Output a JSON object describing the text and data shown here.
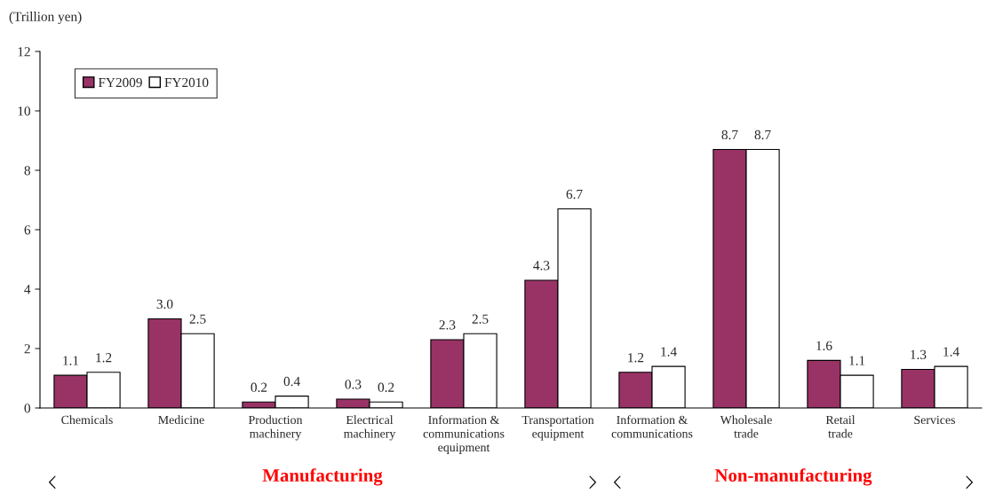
{
  "chart_data": {
    "type": "bar",
    "ylabel": "(Trillion yen)",
    "categories": [
      "Chemicals",
      "Medicine",
      "Production\nmachinery",
      "Electrical\nmachinery",
      "Information &\ncommunications\nequipment",
      "Transportation\nequipment",
      "Information &\ncommunications",
      "Wholesale\ntrade",
      "Retail\ntrade",
      "Services"
    ],
    "series": [
      {
        "name": "FY2009",
        "color": "#993366",
        "values": [
          1.1,
          3.0,
          0.2,
          0.3,
          2.3,
          4.3,
          1.2,
          8.7,
          1.6,
          1.3
        ],
        "value_labels": [
          "1.1",
          "3.0",
          "0.2",
          "0.3",
          "2.3",
          "4.3",
          "1.2",
          "8.7",
          "1.6",
          "1.3"
        ]
      },
      {
        "name": "FY2010",
        "color": "#ffffff",
        "values": [
          1.2,
          2.5,
          0.4,
          0.2,
          2.5,
          6.7,
          1.4,
          8.7,
          1.1,
          1.4
        ],
        "value_labels": [
          "1.2",
          "2.5",
          "0.4",
          "0.2",
          "2.5",
          "6.7",
          "1.4",
          "8.7",
          "1.1",
          "1.4"
        ]
      }
    ],
    "ylim": [
      0,
      12
    ],
    "yticks": [
      0,
      2,
      4,
      6,
      8,
      10,
      12
    ],
    "grid": false,
    "legend": "top left",
    "annotations": [
      "Manufacturing",
      "Non-manufacturing"
    ]
  }
}
